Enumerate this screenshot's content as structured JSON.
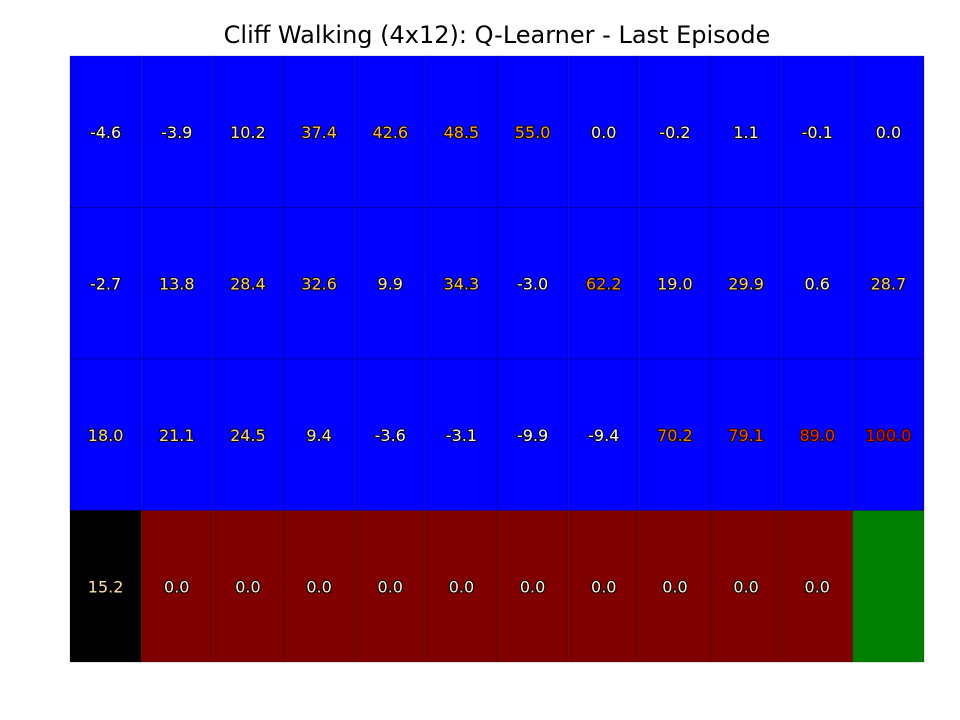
{
  "chart_data": {
    "type": "heatmap",
    "title": "Cliff Walking (4x12): Q-Learner - Last Episode",
    "rows": 4,
    "cols": 12,
    "values": [
      [
        "-4.6",
        "-3.9",
        "10.2",
        "37.4",
        "42.6",
        "48.5",
        "55.0",
        "0.0",
        "-0.2",
        "1.1",
        "-0.1",
        "0.0"
      ],
      [
        "-2.7",
        "13.8",
        "28.4",
        "32.6",
        "9.9",
        "34.3",
        "-3.0",
        "62.2",
        "19.0",
        "29.9",
        "0.6",
        "28.7"
      ],
      [
        "18.0",
        "21.1",
        "24.5",
        "9.4",
        "-3.6",
        "-3.1",
        "-9.9",
        "-9.4",
        "70.2",
        "79.1",
        "89.0",
        "100.0"
      ],
      [
        "15.2",
        "0.0",
        "0.0",
        "0.0",
        "0.0",
        "0.0",
        "0.0",
        "0.0",
        "0.0",
        "0.0",
        "0.0",
        ""
      ]
    ],
    "cell_types": [
      [
        "open",
        "open",
        "open",
        "open",
        "open",
        "open",
        "open",
        "open",
        "open",
        "open",
        "open",
        "open"
      ],
      [
        "open",
        "open",
        "open",
        "open",
        "open",
        "open",
        "open",
        "open",
        "open",
        "open",
        "open",
        "open"
      ],
      [
        "open",
        "open",
        "open",
        "open",
        "open",
        "open",
        "open",
        "open",
        "open",
        "open",
        "open",
        "open"
      ],
      [
        "start",
        "cliff",
        "cliff",
        "cliff",
        "cliff",
        "cliff",
        "cliff",
        "cliff",
        "cliff",
        "cliff",
        "cliff",
        "goal"
      ]
    ],
    "cell_colors": {
      "open": "#0000ff",
      "cliff": "#800000",
      "start": "#000000",
      "goal": "#008000"
    },
    "text_color_scale": {
      "min": -10,
      "max": 100,
      "stops": [
        "#ffffff",
        "#ffd27a",
        "#ff8c00",
        "#ff0000"
      ]
    },
    "grid": true,
    "legend": "none"
  }
}
